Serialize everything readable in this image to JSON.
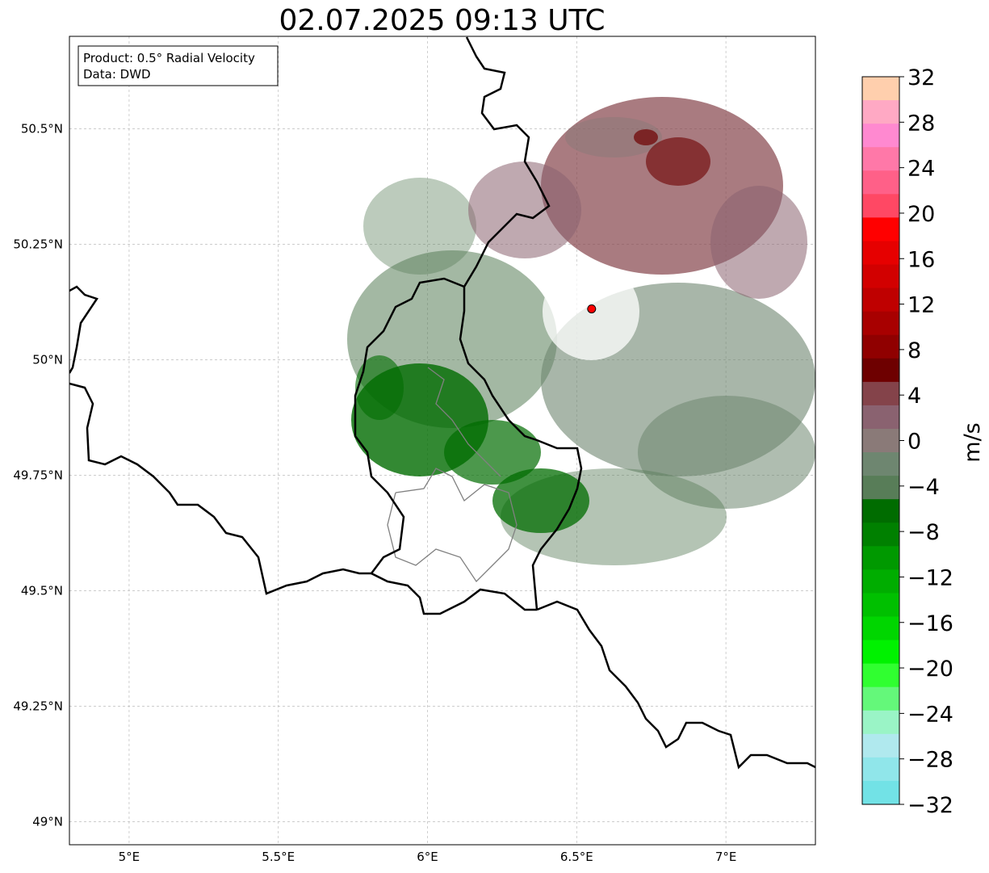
{
  "title": "02.07.2025 09:13 UTC",
  "info_box": {
    "product": "Product: 0.5° Radial Velocity",
    "source": "Data: DWD"
  },
  "map": {
    "extent": {
      "lon": [
        4.8,
        7.3
      ],
      "lat": [
        48.95,
        50.7
      ]
    },
    "lat_ticks": [
      {
        "value": 50.5,
        "label": "50.5°N"
      },
      {
        "value": 50.25,
        "label": "50.25°N"
      },
      {
        "value": 50.0,
        "label": "50°N"
      },
      {
        "value": 49.75,
        "label": "49.75°N"
      },
      {
        "value": 49.5,
        "label": "49.5°N"
      },
      {
        "value": 49.25,
        "label": "49.25°N"
      },
      {
        "value": 49.0,
        "label": "49°N"
      }
    ],
    "lon_ticks": [
      {
        "value": 5.0,
        "label": "5°E"
      },
      {
        "value": 5.5,
        "label": "5.5°E"
      },
      {
        "value": 6.0,
        "label": "6°E"
      },
      {
        "value": 6.5,
        "label": "6.5°E"
      },
      {
        "value": 7.0,
        "label": "7°E"
      }
    ],
    "gridlines": true,
    "radar_site": {
      "lon": 6.55,
      "lat": 50.11
    },
    "colors": {
      "border": "#000000",
      "admin_border": "#808080",
      "site_marker": "#ff0000"
    }
  },
  "colorbar": {
    "unit": "m/s",
    "min": -32,
    "max": 32,
    "tick_values": [
      32,
      28,
      24,
      20,
      16,
      12,
      8,
      4,
      0,
      -4,
      -8,
      -12,
      -16,
      -20,
      -24,
      -28,
      -32
    ],
    "tick_labels": [
      "32",
      "28",
      "24",
      "20",
      "16",
      "12",
      "8",
      "4",
      "0",
      "−4",
      "−8",
      "−12",
      "−16",
      "−20",
      "−24",
      "−28",
      "−32"
    ],
    "colors_top_to_bottom": [
      "#ffcfad",
      "#ffa9c4",
      "#ff89d0",
      "#ff78a8",
      "#ff6088",
      "#ff4864",
      "#ff0000",
      "#e60000",
      "#d20000",
      "#bf0000",
      "#a80000",
      "#900000",
      "#6e0000",
      "#84434a",
      "#8a6270",
      "#8a7a78",
      "#6e8670",
      "#587d58",
      "#006c00",
      "#008000",
      "#009900",
      "#00ad00",
      "#00c000",
      "#00d600",
      "#00f200",
      "#30ff30",
      "#64f87a",
      "#9af4c6",
      "#b0e9ee",
      "#90e6ea",
      "#72e2e6"
    ]
  }
}
